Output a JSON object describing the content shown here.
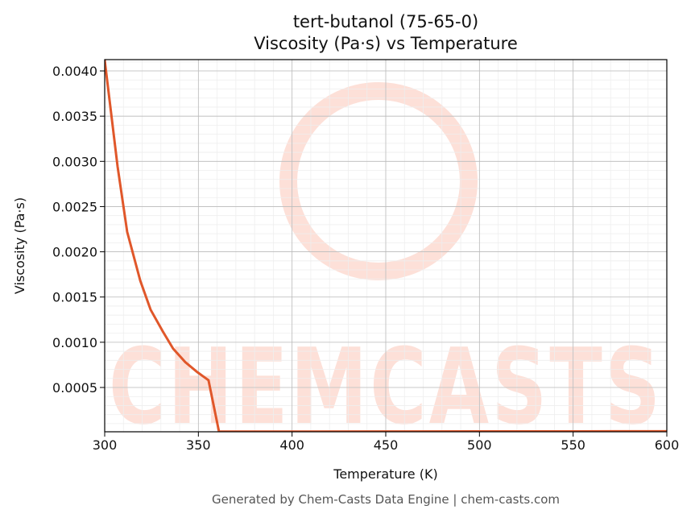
{
  "chart_data": {
    "type": "line",
    "title": "tert-butanol (75-65-0)",
    "subtitle": "Viscosity (Pa·s) vs Temperature",
    "xlabel": "Temperature (K)",
    "ylabel": "Viscosity (Pa·s)",
    "footer": "Generated by Chem-Casts Data Engine | chem-casts.com",
    "watermark": "CHEMCASTS",
    "xlim": [
      300,
      600
    ],
    "ylim": [
      1e-05,
      0.004125
    ],
    "xticks": [
      300,
      350,
      400,
      450,
      500,
      550,
      600
    ],
    "yticks": [
      0.0005,
      {
        "value": 0.001,
        "label": "0.0010"
      },
      0.0015,
      {
        "value": 0.002,
        "label": "0.0020"
      },
      0.0025,
      {
        "value": 0.003,
        "label": "0.0030"
      },
      0.0035,
      {
        "value": 0.004,
        "label": "0.0040"
      }
    ],
    "grid": true,
    "series": [
      {
        "name": "Viscosity",
        "color": "#e0572a",
        "x": [
          300,
          306.9,
          312,
          319,
          324.5,
          331,
          336.5,
          343,
          349.4,
          355.4,
          361,
          400,
          450,
          500,
          550,
          600
        ],
        "values": [
          0.00412,
          0.00294,
          0.00222,
          0.00168,
          0.00136,
          0.00112,
          0.00093,
          0.00078,
          0.00067,
          0.00058,
          1.2e-05,
          1.2e-05,
          1.3e-05,
          1.4e-05,
          1.5e-05,
          1.6e-05
        ]
      }
    ]
  }
}
